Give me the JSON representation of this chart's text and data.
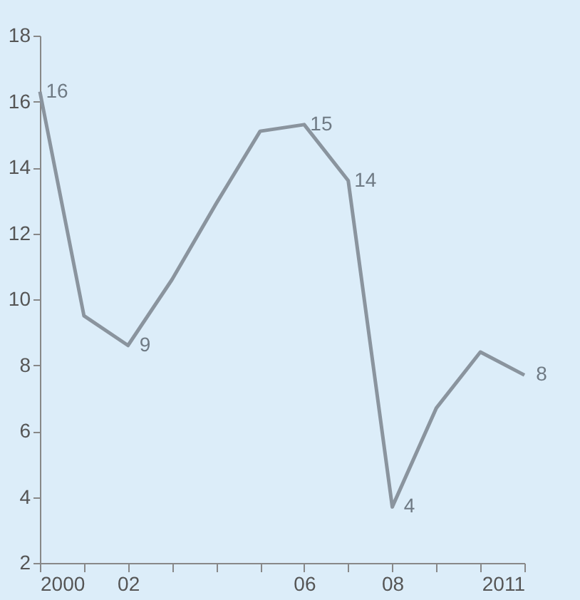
{
  "chart_data": {
    "type": "line",
    "x": [
      2000,
      2001,
      2002,
      2003,
      2004,
      2005,
      2006,
      2007,
      2008,
      2009,
      2010,
      2011
    ],
    "series": [
      {
        "color": "#8a949e",
        "values": [
          16.3,
          9.5,
          8.6,
          10.6,
          12.9,
          15.1,
          15.3,
          13.6,
          3.7,
          6.7,
          8.4,
          7.7
        ],
        "value_labels": [
          "16",
          null,
          "9",
          null,
          null,
          null,
          "15",
          "14",
          "4",
          null,
          null,
          "8"
        ]
      }
    ],
    "xlim": [
      2000,
      2011
    ],
    "xticks": [
      2000,
      {
        "value": 2001,
        "label": null
      },
      {
        "value": 2002,
        "label": "02"
      },
      {
        "value": 2003,
        "label": null
      },
      {
        "value": 2004,
        "label": null
      },
      {
        "value": 2005,
        "label": null
      },
      {
        "value": 2006,
        "label": "06"
      },
      {
        "value": 2007,
        "label": null
      },
      {
        "value": 2008,
        "label": "08"
      },
      {
        "value": 2009,
        "label": null
      },
      {
        "value": 2010,
        "label": null
      },
      2011
    ],
    "ylim": [
      2,
      18
    ],
    "yticks": [
      2,
      4,
      6,
      8,
      10,
      12,
      14,
      16,
      18
    ],
    "grid": false,
    "marker": "none",
    "line_style": "solid"
  }
}
